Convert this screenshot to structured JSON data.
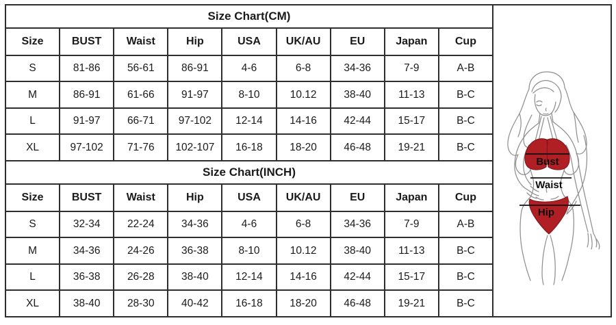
{
  "page": {
    "colors": {
      "background": "#ffffff",
      "border": "#2e2e2e",
      "text": "#1a1a1a"
    }
  },
  "size_chart": {
    "columns": [
      "Size",
      "BUST",
      "Waist",
      "Hip",
      "USA",
      "UK/AU",
      "EU",
      "Japan",
      "Cup"
    ],
    "sections": [
      {
        "title": "Size Chart(CM)",
        "rows": [
          [
            "S",
            "81-86",
            "56-61",
            "86-91",
            "4-6",
            "6-8",
            "34-36",
            "7-9",
            "A-B"
          ],
          [
            "M",
            "86-91",
            "61-66",
            "91-97",
            "8-10",
            "10.12",
            "38-40",
            "11-13",
            "B-C"
          ],
          [
            "L",
            "91-97",
            "66-71",
            "97-102",
            "12-14",
            "14-16",
            "42-44",
            "15-17",
            "B-C"
          ],
          [
            "XL",
            "97-102",
            "71-76",
            "102-107",
            "16-18",
            "18-20",
            "46-48",
            "19-21",
            "B-C"
          ]
        ]
      },
      {
        "title": "Size Chart(INCH)",
        "rows": [
          [
            "S",
            "32-34",
            "22-24",
            "34-36",
            "4-6",
            "6-8",
            "34-36",
            "7-9",
            "A-B"
          ],
          [
            "M",
            "34-36",
            "24-26",
            "36-38",
            "8-10",
            "10.12",
            "38-40",
            "11-13",
            "B-C"
          ],
          [
            "L",
            "36-38",
            "26-28",
            "38-40",
            "12-14",
            "14-16",
            "42-44",
            "15-17",
            "B-C"
          ],
          [
            "XL",
            "38-40",
            "28-30",
            "40-42",
            "16-18",
            "18-20",
            "46-48",
            "19-21",
            "B-C"
          ]
        ]
      }
    ]
  },
  "figure": {
    "labels": {
      "bust": "Bust",
      "waist": "Waist",
      "hip": "Hip"
    },
    "colors": {
      "bikini": "#b01f24",
      "bikini_outline": "#7c1317",
      "line_art": "#8f8f8f",
      "measure": "#111111",
      "label_text": "#0d0d0d"
    }
  }
}
